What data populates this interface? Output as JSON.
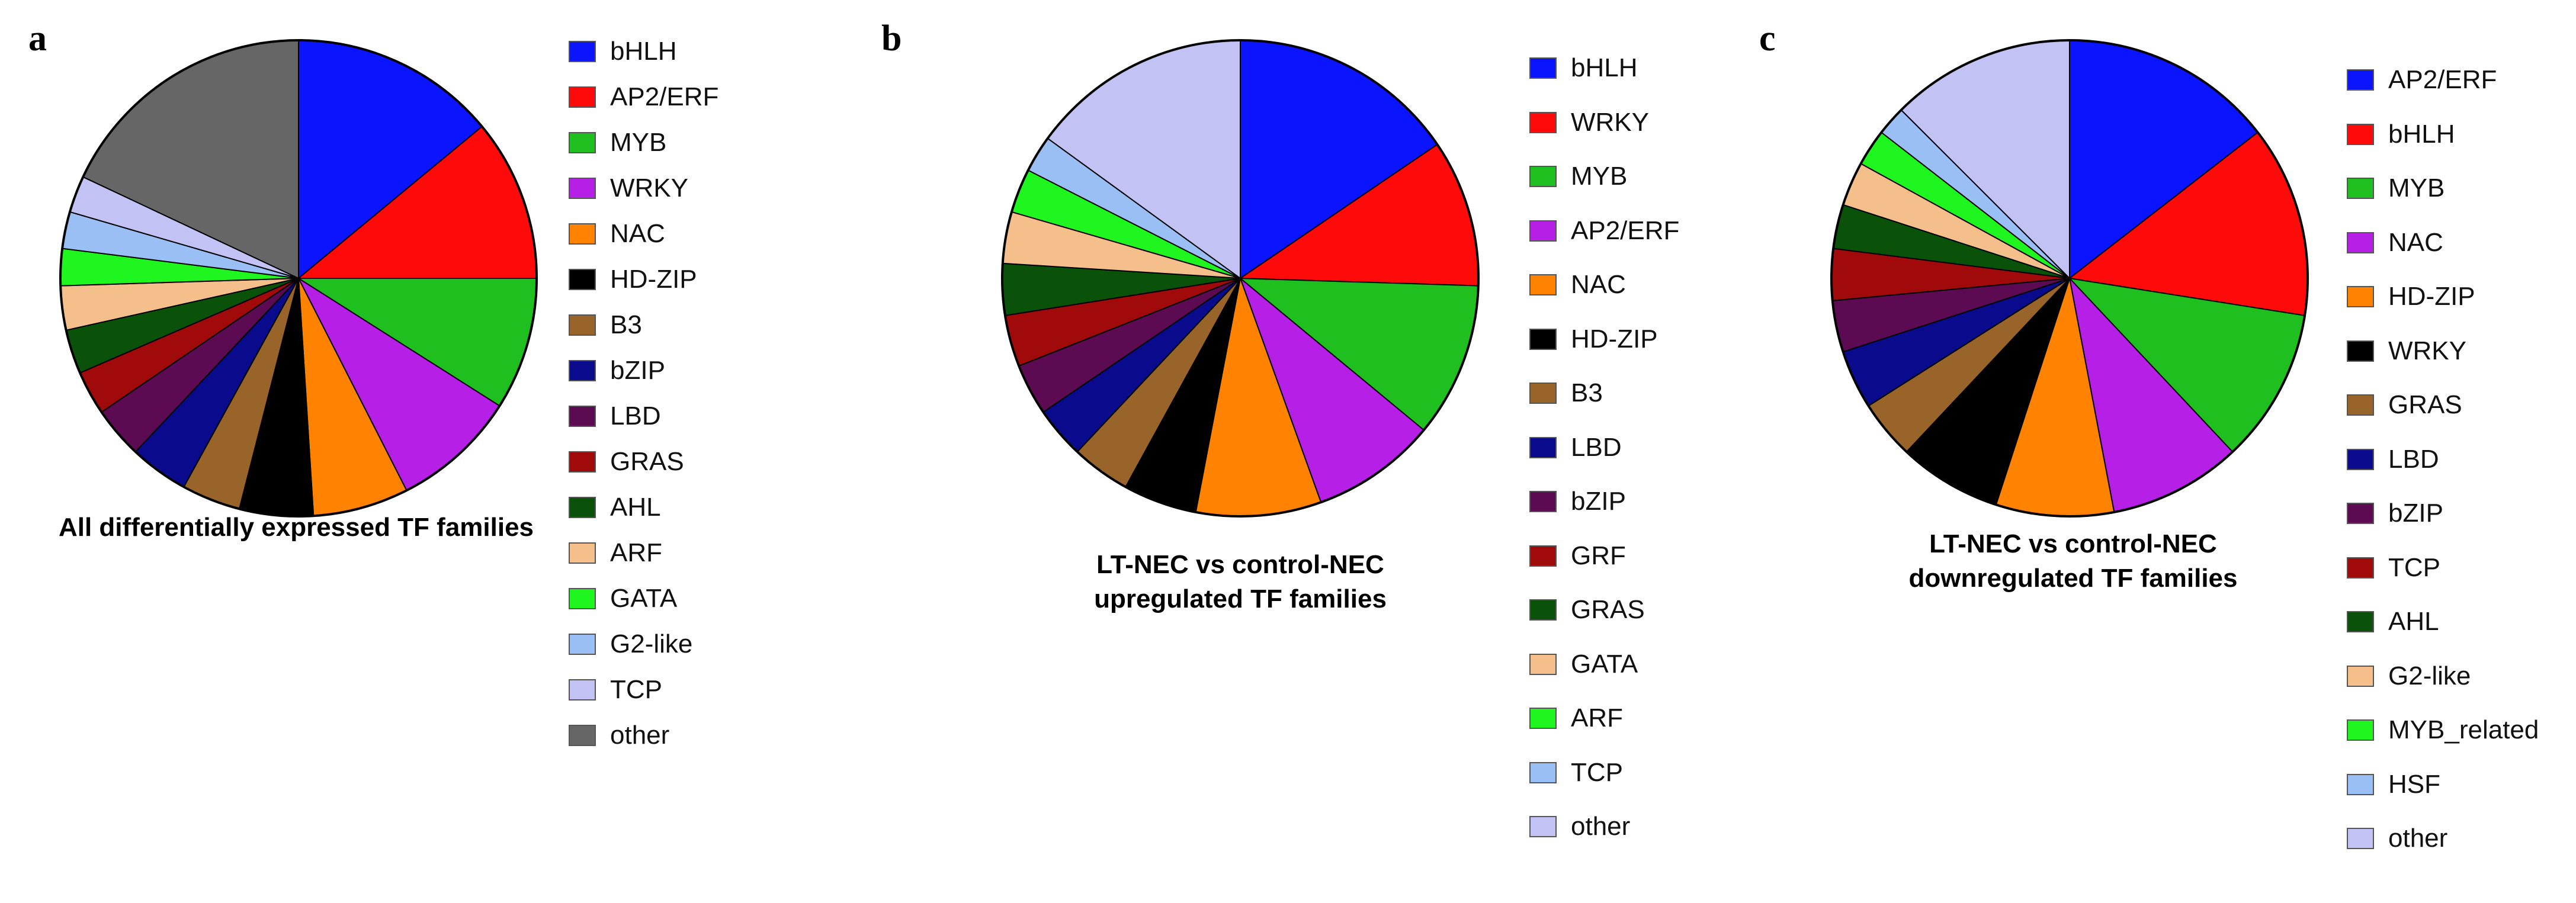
{
  "colors": {
    "blue": "#0a14ff",
    "red": "#ff0a0a",
    "green": "#1fbf1f",
    "purple": "#b61fe6",
    "orange": "#ff8200",
    "black": "#000000",
    "brown": "#99642a",
    "navy": "#0a0a8c",
    "plum": "#5c0a52",
    "darkred": "#a00a0a",
    "darkgreen": "#0a520a",
    "peach": "#f5bf8c",
    "lime": "#1ff51f",
    "lightblue": "#99bff5",
    "lavender": "#c2c2f5",
    "gray": "#666666"
  },
  "chart_data": [
    {
      "type": "pie",
      "panel": "a",
      "title": "All differentially expressed TF families",
      "start_angle_deg": 0,
      "direction": "clockwise",
      "slices": [
        {
          "label": "bHLH",
          "value": 14,
          "color": "#0a14ff"
        },
        {
          "label": "AP2/ERF",
          "value": 11,
          "color": "#ff0a0a"
        },
        {
          "label": "MYB",
          "value": 9,
          "color": "#1fbf1f"
        },
        {
          "label": "WRKY",
          "value": 8.5,
          "color": "#b61fe6"
        },
        {
          "label": "NAC",
          "value": 6.5,
          "color": "#ff8200"
        },
        {
          "label": "HD-ZIP",
          "value": 5,
          "color": "#000000"
        },
        {
          "label": "B3",
          "value": 4,
          "color": "#99642a"
        },
        {
          "label": "bZIP",
          "value": 4,
          "color": "#0a0a8c"
        },
        {
          "label": "LBD",
          "value": 3.5,
          "color": "#5c0a52"
        },
        {
          "label": "GRAS",
          "value": 3,
          "color": "#a00a0a"
        },
        {
          "label": "AHL",
          "value": 3,
          "color": "#0a520a"
        },
        {
          "label": "ARF",
          "value": 3,
          "color": "#f5bf8c"
        },
        {
          "label": "GATA",
          "value": 2.5,
          "color": "#1ff51f"
        },
        {
          "label": "G2-like",
          "value": 2.5,
          "color": "#99bff5"
        },
        {
          "label": "TCP",
          "value": 2.5,
          "color": "#c2c2f5"
        },
        {
          "label": "other",
          "value": 18,
          "color": "#666666"
        }
      ]
    },
    {
      "type": "pie",
      "panel": "b",
      "title": "LT-NEC vs control-NEC upregulated TF families",
      "title_lines": [
        "LT-NEC vs control-NEC",
        "upregulated TF families"
      ],
      "start_angle_deg": 0,
      "direction": "clockwise",
      "slices": [
        {
          "label": "bHLH",
          "value": 15.5,
          "color": "#0a14ff"
        },
        {
          "label": "WRKY",
          "value": 10,
          "color": "#ff0a0a"
        },
        {
          "label": "MYB",
          "value": 10.5,
          "color": "#1fbf1f"
        },
        {
          "label": "AP2/ERF",
          "value": 8.5,
          "color": "#b61fe6"
        },
        {
          "label": "NAC",
          "value": 8.5,
          "color": "#ff8200"
        },
        {
          "label": "HD-ZIP",
          "value": 5,
          "color": "#000000"
        },
        {
          "label": "B3",
          "value": 4,
          "color": "#99642a"
        },
        {
          "label": "LBD",
          "value": 3.5,
          "color": "#0a0a8c"
        },
        {
          "label": "bZIP",
          "value": 3.5,
          "color": "#5c0a52"
        },
        {
          "label": "GRF",
          "value": 3.5,
          "color": "#a00a0a"
        },
        {
          "label": "GRAS",
          "value": 3.5,
          "color": "#0a520a"
        },
        {
          "label": "GATA",
          "value": 3.5,
          "color": "#f5bf8c"
        },
        {
          "label": "ARF",
          "value": 3,
          "color": "#1ff51f"
        },
        {
          "label": "TCP",
          "value": 2.5,
          "color": "#99bff5"
        },
        {
          "label": "other",
          "value": 15,
          "color": "#c2c2f5"
        }
      ]
    },
    {
      "type": "pie",
      "panel": "c",
      "title": "LT-NEC vs control-NEC downregulated TF families",
      "title_lines": [
        "LT-NEC vs control-NEC",
        "downregulated TF families"
      ],
      "start_angle_deg": 0,
      "direction": "clockwise",
      "slices": [
        {
          "label": "AP2/ERF",
          "value": 14.5,
          "color": "#0a14ff"
        },
        {
          "label": "bHLH",
          "value": 13,
          "color": "#ff0a0a"
        },
        {
          "label": "MYB",
          "value": 10.5,
          "color": "#1fbf1f"
        },
        {
          "label": "NAC",
          "value": 9,
          "color": "#b61fe6"
        },
        {
          "label": "HD-ZIP",
          "value": 8,
          "color": "#ff8200"
        },
        {
          "label": "WRKY",
          "value": 7,
          "color": "#000000"
        },
        {
          "label": "GRAS",
          "value": 4,
          "color": "#99642a"
        },
        {
          "label": "LBD",
          "value": 4,
          "color": "#0a0a8c"
        },
        {
          "label": "bZIP",
          "value": 3.5,
          "color": "#5c0a52"
        },
        {
          "label": "TCP",
          "value": 3.5,
          "color": "#a00a0a"
        },
        {
          "label": "AHL",
          "value": 3,
          "color": "#0a520a"
        },
        {
          "label": "G2-like",
          "value": 3,
          "color": "#f5bf8c"
        },
        {
          "label": "MYB_related",
          "value": 2.5,
          "color": "#1ff51f"
        },
        {
          "label": "HSF",
          "value": 2,
          "color": "#99bff5"
        },
        {
          "label": "other",
          "value": 12.5,
          "color": "#c2c2f5"
        }
      ]
    }
  ]
}
